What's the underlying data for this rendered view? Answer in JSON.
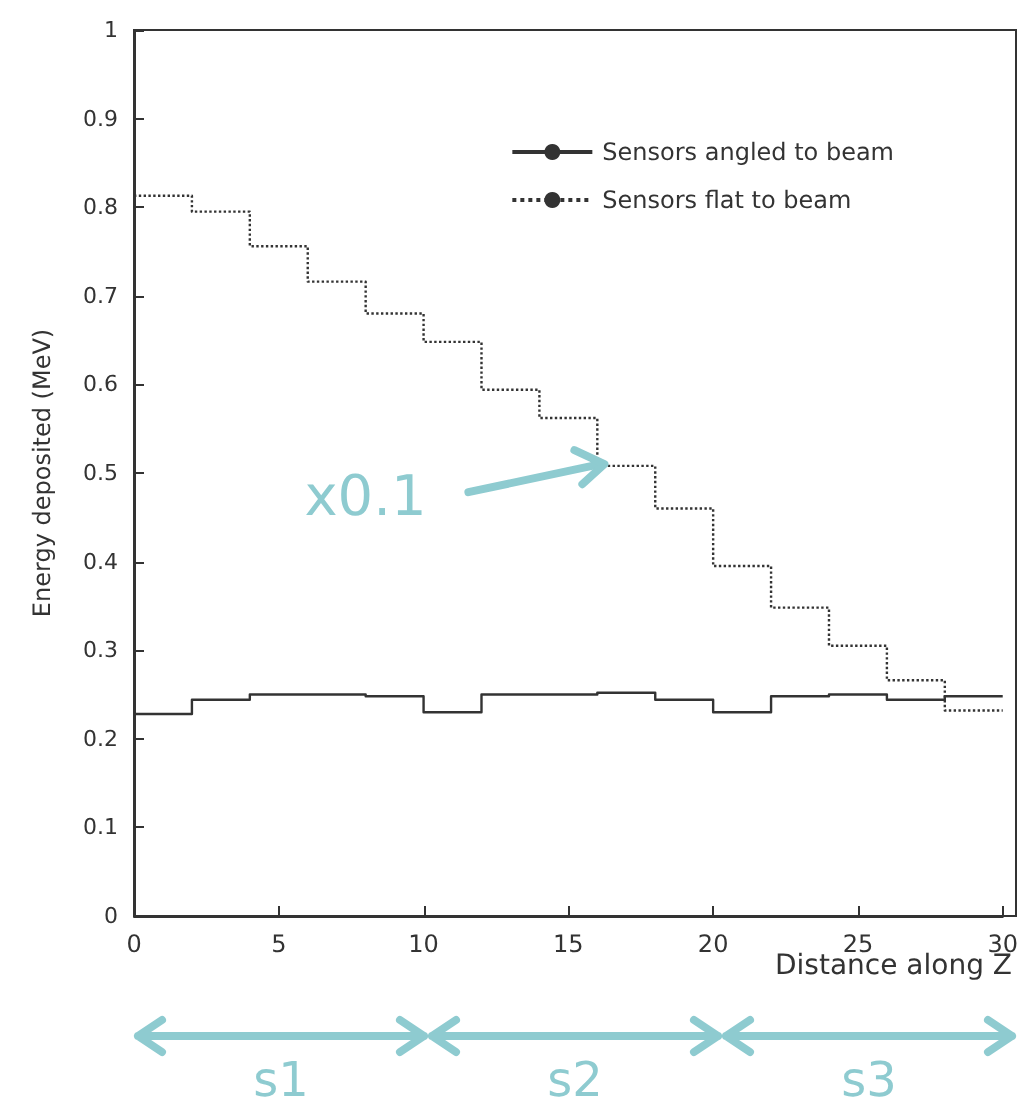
{
  "chart_data": {
    "type": "histogram",
    "ylabel": "Energy deposited (MeV)",
    "xlabel": "Distance along Z",
    "bins": [
      0,
      2,
      4,
      6,
      8,
      10,
      12,
      14,
      16,
      18,
      20,
      22,
      24,
      26,
      28,
      30
    ],
    "series": [
      {
        "name": "Sensors angled to beam",
        "color": "#333333",
        "line_style": "solid",
        "values": [
          0.228,
          0.244,
          0.25,
          0.25,
          0.248,
          0.23,
          0.25,
          0.25,
          0.252,
          0.244,
          0.23,
          0.248,
          0.25,
          0.244,
          0.248
        ]
      },
      {
        "name": "Sensors flat to beam",
        "color": "#333333",
        "line_style": "dotted",
        "values": [
          0.813,
          0.795,
          0.756,
          0.716,
          0.68,
          0.648,
          0.594,
          0.562,
          0.508,
          0.46,
          0.395,
          0.348,
          0.305,
          0.266,
          0.232
        ]
      }
    ],
    "xlim": [
      0,
      30
    ],
    "xticks": [
      0,
      5,
      10,
      15,
      20,
      25,
      30
    ],
    "ylim": [
      0,
      1
    ],
    "yticks": [
      0,
      0.1,
      0.2,
      0.3,
      0.4,
      0.5,
      0.6,
      0.7,
      0.8,
      0.9,
      1
    ],
    "grid": false,
    "legend": "top right",
    "annotations": [
      {
        "text": "x0.1",
        "x": 16,
        "y": 0.51
      },
      "s1",
      "s2",
      "s3"
    ]
  }
}
